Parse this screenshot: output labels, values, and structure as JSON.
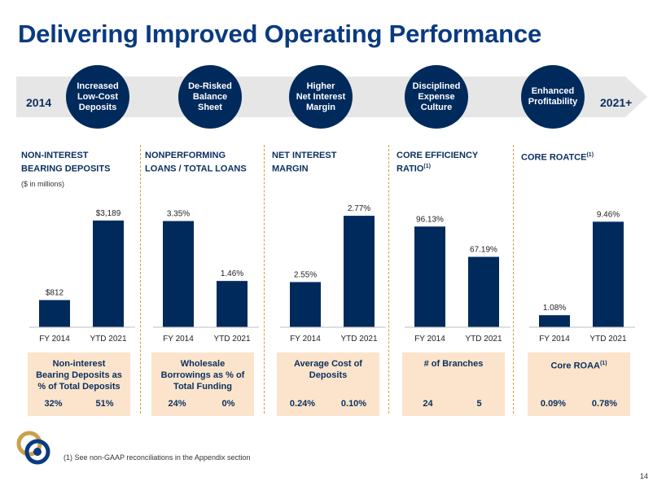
{
  "title": "Delivering Improved Operating Performance",
  "banner": {
    "start_year": "2014",
    "end_year": "2021+",
    "themes": [
      {
        "line1": "Increased",
        "line2": "Low-Cost",
        "line3": "Deposits"
      },
      {
        "line1": "De-Risked",
        "line2": "Balance",
        "line3": "Sheet"
      },
      {
        "line1": "Higher",
        "line2": "Net Interest",
        "line3": "Margin"
      },
      {
        "line1": "Disciplined",
        "line2": "Expense",
        "line3": "Culture"
      },
      {
        "line1": "Enhanced",
        "line2": "Profitability",
        "line3": ""
      }
    ]
  },
  "chart_data": [
    {
      "type": "bar",
      "title_line1": "NON-INTEREST",
      "title_line2": "BEARING DEPOSITS",
      "title_sup": "",
      "subtitle": "($ in millions)",
      "categories": [
        "FY 2014",
        "YTD 2021"
      ],
      "values": [
        812,
        3189
      ],
      "labels": [
        "$812",
        "$3,189"
      ],
      "ylim": [
        0,
        3600
      ],
      "color": "#002a5c"
    },
    {
      "type": "bar",
      "title_line1": "NONPERFORMING",
      "title_line2": "LOANS / TOTAL LOANS",
      "title_sup": "",
      "subtitle": "",
      "categories": [
        "FY 2014",
        "YTD 2021"
      ],
      "values": [
        3.35,
        1.46
      ],
      "labels": [
        "3.35%",
        "1.46%"
      ],
      "ylim": [
        0,
        3.8
      ],
      "color": "#002a5c"
    },
    {
      "type": "bar",
      "title_line1": "NET INTEREST",
      "title_line2": "MARGIN",
      "title_sup": "",
      "subtitle": "",
      "categories": [
        "FY 2014",
        "YTD 2021"
      ],
      "values": [
        2.55,
        2.77
      ],
      "labels": [
        "2.55%",
        "2.77%"
      ],
      "ylim": [
        2.4,
        2.8
      ],
      "color": "#002a5c"
    },
    {
      "type": "bar",
      "title_line1": "CORE EFFICIENCY",
      "title_line2": "RATIO",
      "title_sup": "(1)",
      "subtitle": "",
      "categories": [
        "FY 2014",
        "YTD 2021"
      ],
      "values": [
        96.13,
        67.19
      ],
      "labels": [
        "96.13%",
        "67.19%"
      ],
      "ylim": [
        0,
        115
      ],
      "color": "#002a5c"
    },
    {
      "type": "bar",
      "title_line1": "CORE ROATCE",
      "title_line2": "",
      "title_sup": "(1)",
      "subtitle": "",
      "categories": [
        "FY 2014",
        "YTD 2021"
      ],
      "values": [
        1.08,
        9.46
      ],
      "labels": [
        "1.08%",
        "9.46%"
      ],
      "ylim": [
        0,
        10.8
      ],
      "color": "#002a5c"
    }
  ],
  "info_boxes": [
    {
      "label_line1": "Non-interest",
      "label_line2": "Bearing Deposits as",
      "label_line3": "% of Total Deposits",
      "sup": "",
      "val_2014": "32%",
      "val_2021": "51%"
    },
    {
      "label_line1": "Wholesale",
      "label_line2": "Borrowings as % of",
      "label_line3": "Total Funding",
      "sup": "",
      "val_2014": "24%",
      "val_2021": "0%"
    },
    {
      "label_line1": "Average Cost of",
      "label_line2": "Deposits",
      "label_line3": "",
      "sup": "",
      "val_2014": "0.24%",
      "val_2021": "0.10%"
    },
    {
      "label_line1": "# of Branches",
      "label_line2": "",
      "label_line3": "",
      "sup": "",
      "val_2014": "24",
      "val_2021": "5"
    },
    {
      "label_line1": "Core ROAA",
      "label_line2": "",
      "label_line3": "",
      "sup": "(1)",
      "val_2014": "0.09%",
      "val_2021": "0.78%"
    }
  ],
  "footnote": "(1)   See non-GAAP reconciliations in the Appendix section",
  "page_number": "14",
  "colors": {
    "navy": "#002a5c",
    "title_blue": "#0a3a80",
    "box_fill": "#fbe4cb",
    "divider": "#c9a14a",
    "banner_grey": "#e6e6e6"
  }
}
